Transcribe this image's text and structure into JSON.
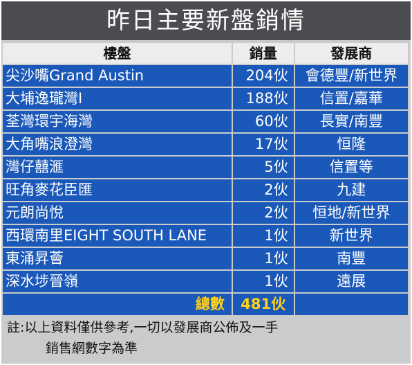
{
  "title": "昨日主要新盤銷情",
  "headers": {
    "project": "樓盤",
    "sales": "銷量",
    "developer": "發展商"
  },
  "rows": [
    {
      "project": "尖沙嘴Grand Austin",
      "sales": "204伙",
      "developer": "會德豐/新世界"
    },
    {
      "project": "大埔逸瓏灣I",
      "sales": "188伙",
      "developer": "信置/嘉華"
    },
    {
      "project": "荃灣環宇海灣",
      "sales": "60伙",
      "developer": "長實/南豐"
    },
    {
      "project": "大角嘴浪澄灣",
      "sales": "17伙",
      "developer": "恒隆"
    },
    {
      "project": "灣仔囍滙",
      "sales": "5伙",
      "developer": "信置等"
    },
    {
      "project": "旺角麥花臣匯",
      "sales": "2伙",
      "developer": "九建"
    },
    {
      "project": "元朗尚悅",
      "sales": "2伙",
      "developer": "恒地/新世界"
    },
    {
      "project": "西環南里EIGHT SOUTH LANE",
      "sales": "1伙",
      "developer": "新世界"
    },
    {
      "project": "東涌昇薈",
      "sales": "1伙",
      "developer": "南豐"
    },
    {
      "project": "深水埗晉嶺",
      "sales": "1伙",
      "developer": "遠展"
    }
  ],
  "total": {
    "label": "總數",
    "value": "481伙"
  },
  "note": {
    "line1": "註:以上資料僅供參考,一切以發展商公佈及一手",
    "line2": "銷售網數字為準"
  },
  "colors": {
    "title_bg": "#4a4c50",
    "row_bg": "#1a58b9",
    "total_text": "#ffd21a",
    "header_bg": "#ededee",
    "frame_bg": "#c9cbcd"
  }
}
